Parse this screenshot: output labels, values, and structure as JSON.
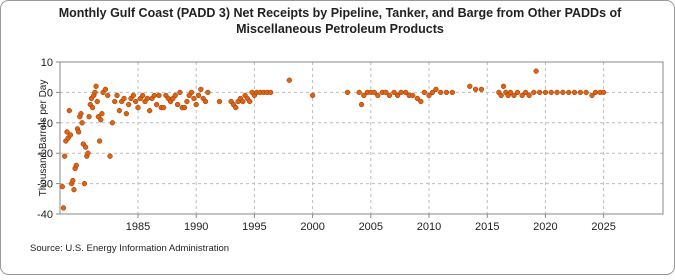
{
  "chart_data": {
    "type": "scatter",
    "title": [
      "Monthly Gulf Coast (PADD 3) Net Receipts by Pipeline, Tanker, and Barge from Other PADDs of",
      "Miscellaneous Petroleum Products"
    ],
    "y_label": "Thousand Barrels per Day",
    "source": "Source: U.S. Energy Information Administration",
    "xlim": [
      1978.3,
      2030.1
    ],
    "ylim": [
      -40,
      10
    ],
    "xticks": [
      1985,
      1990,
      1995,
      2000,
      2005,
      2010,
      2015,
      2020,
      2025
    ],
    "yticks": [
      -40,
      -30,
      -20,
      -10,
      0,
      10
    ],
    "grid": true,
    "series": [
      {
        "name": "Net Receipts",
        "color": "#e2620f",
        "x": [
          1978.5,
          1978.6,
          1978.7,
          1978.8,
          1978.9,
          1979.0,
          1979.1,
          1979.2,
          1979.3,
          1979.4,
          1979.5,
          1979.6,
          1979.7,
          1979.8,
          1979.9,
          1980.0,
          1980.1,
          1980.2,
          1980.3,
          1980.4,
          1980.5,
          1980.6,
          1980.7,
          1980.8,
          1980.9,
          1981.0,
          1981.1,
          1981.2,
          1981.3,
          1981.4,
          1981.5,
          1981.6,
          1981.7,
          1981.8,
          1981.9,
          1982.0,
          1982.2,
          1982.4,
          1982.6,
          1982.8,
          1983.0,
          1983.2,
          1983.4,
          1983.6,
          1983.8,
          1984.0,
          1984.2,
          1984.4,
          1984.6,
          1984.8,
          1985.0,
          1985.2,
          1985.4,
          1985.6,
          1985.8,
          1986.0,
          1986.2,
          1986.4,
          1986.6,
          1986.8,
          1987.0,
          1987.2,
          1987.4,
          1987.6,
          1987.8,
          1988.0,
          1988.2,
          1988.4,
          1988.6,
          1988.8,
          1989.0,
          1989.2,
          1989.4,
          1989.6,
          1989.8,
          1990.0,
          1990.2,
          1990.4,
          1990.6,
          1990.8,
          1991.0,
          1992.0,
          1993.0,
          1993.2,
          1993.4,
          1993.6,
          1993.8,
          1994.0,
          1994.2,
          1994.4,
          1994.6,
          1994.8,
          1995.0,
          1995.2,
          1995.5,
          1995.8,
          1996.1,
          1996.4,
          1998.0,
          2000.0,
          2003.0,
          2004.0,
          2004.2,
          2004.4,
          2004.7,
          2005.0,
          2005.3,
          2005.6,
          2006.0,
          2006.3,
          2006.6,
          2007.0,
          2007.3,
          2007.6,
          2008.0,
          2008.3,
          2008.6,
          2009.0,
          2009.3,
          2009.6,
          2010.0,
          2010.3,
          2010.6,
          2011.0,
          2011.5,
          2012.0,
          2013.5,
          2014.0,
          2014.5,
          2016.0,
          2016.2,
          2016.4,
          2016.6,
          2016.8,
          2017.0,
          2017.3,
          2017.6,
          2018.0,
          2018.3,
          2018.6,
          2019.0,
          2019.2,
          2019.5,
          2020.0,
          2020.5,
          2021.0,
          2021.5,
          2022.0,
          2022.5,
          2023.0,
          2023.5,
          2024.0,
          2024.3,
          2024.7,
          2025.0
        ],
        "values": [
          -31,
          -38,
          -21,
          -16,
          -13,
          -15,
          -6,
          -14,
          -30,
          -29,
          -32,
          -25,
          -24,
          -12,
          -13,
          -8,
          -7,
          -10,
          -17,
          -30,
          -18,
          -21,
          -20,
          -8,
          -4,
          -2,
          -5,
          -1,
          0,
          2,
          -3,
          -8,
          -16,
          -9,
          -7,
          0,
          1,
          -1,
          -21,
          -10,
          -3,
          -1,
          -6,
          -3,
          -2,
          -7,
          -4,
          -2,
          -1,
          -3,
          -5,
          -2,
          -1,
          -3,
          -2,
          -6,
          -2,
          -1,
          -4,
          -1,
          -5,
          -5,
          -1,
          -2,
          -3,
          -2,
          -1,
          -4,
          0,
          -5,
          -5,
          -3,
          -1,
          0,
          -2,
          -4,
          -1,
          1,
          -2,
          -3,
          0,
          -3,
          -3,
          -4,
          -5,
          -3,
          -2,
          -3,
          -1,
          -2,
          -3,
          0,
          -1,
          0,
          0,
          0,
          0,
          0,
          4,
          -1,
          0,
          0,
          -4,
          -1,
          0,
          0,
          0,
          -1,
          0,
          0,
          -1,
          0,
          -1,
          0,
          0,
          -1,
          -1,
          -2,
          -3,
          0,
          -1,
          0,
          1,
          0,
          0,
          0,
          2,
          1,
          1,
          0,
          -1,
          2,
          0,
          -1,
          0,
          -1,
          0,
          -1,
          0,
          -1,
          0,
          7,
          0,
          0,
          0,
          0,
          0,
          0,
          0,
          0,
          0,
          -1,
          0,
          0,
          0
        ]
      }
    ]
  }
}
